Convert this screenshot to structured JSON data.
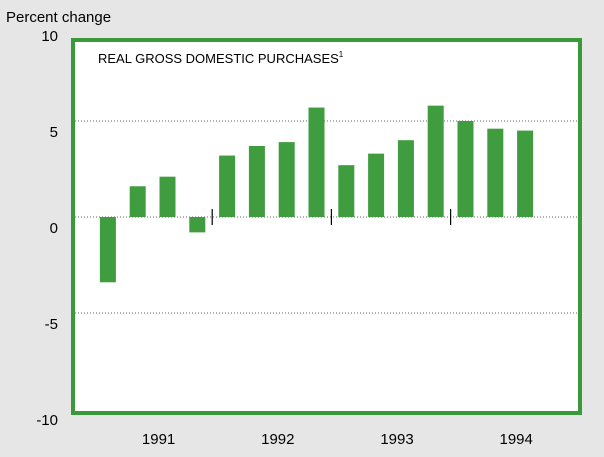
{
  "chart_data": {
    "type": "bar",
    "y_axis_label": "Percent change",
    "title": "REAL GROSS DOMESTIC PURCHASES",
    "title_footnote": "1",
    "groups": [
      "1991",
      "1992",
      "1993",
      "1994"
    ],
    "values": [
      -3.4,
      1.6,
      2.1,
      -0.8,
      3.2,
      3.7,
      3.9,
      5.7,
      2.7,
      3.3,
      4.0,
      5.8,
      5.0,
      4.6,
      4.5
    ],
    "color": "#3f9c3f",
    "ylim": [
      -10,
      10
    ],
    "yticks": [
      -10,
      -5,
      0,
      5,
      10
    ],
    "grid": true
  }
}
